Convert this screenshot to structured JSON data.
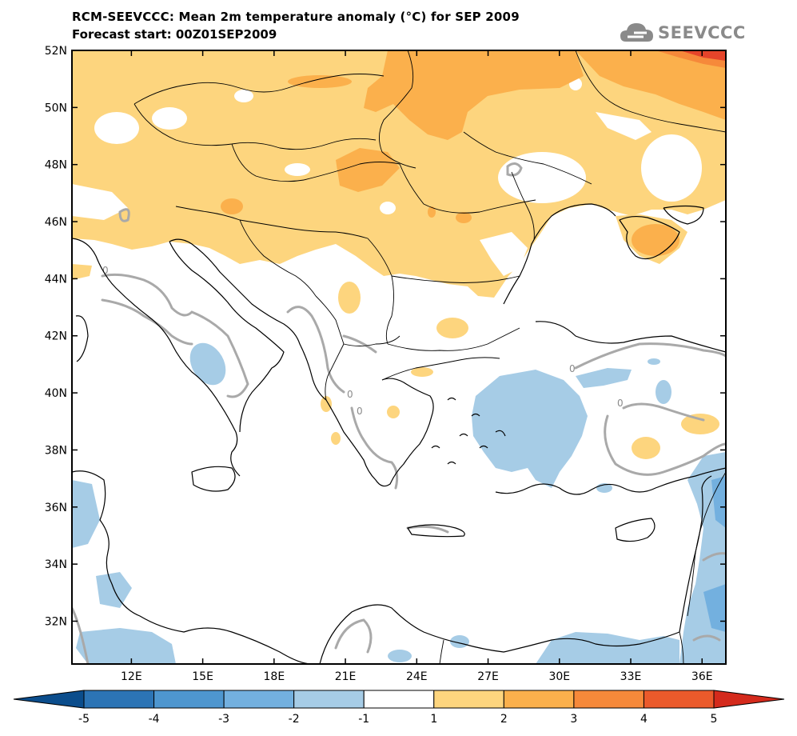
{
  "title": "RCM-SEEVCCC: Mean 2m temperature anomaly (°C) for SEP 2009",
  "subtitle": "Forecast start: 00Z01SEP2009",
  "logo": {
    "text": "SEEVCCC",
    "icon": "cloud-icon"
  },
  "map": {
    "latitude_labels": [
      "52N",
      "50N",
      "48N",
      "46N",
      "44N",
      "42N",
      "40N",
      "38N",
      "36N",
      "34N",
      "32N"
    ],
    "longitude_labels": [
      "12E",
      "15E",
      "18E",
      "21E",
      "24E",
      "27E",
      "30E",
      "33E",
      "36E"
    ],
    "lat_range": [
      30.5,
      52
    ],
    "lon_range": [
      9.5,
      37
    ],
    "contour_label": "0"
  },
  "colorbar": {
    "ticks": [
      "-5",
      "-4",
      "-3",
      "-2",
      "-1",
      "1",
      "2",
      "3",
      "4",
      "5"
    ],
    "colors": [
      "#0b4d8c",
      "#2c74b5",
      "#4e96cf",
      "#73b0df",
      "#a6cce6",
      "#ffffff",
      "#fdd57e",
      "#fbb04c",
      "#f6893a",
      "#eb5a2b",
      "#d42a1c"
    ]
  },
  "colors": {
    "warm1": "#fdd57e",
    "warm2": "#fbb04c",
    "warm3": "#f6893a",
    "warm4": "#e5442a",
    "cool1": "#a6cce6",
    "cool2": "#73b0df",
    "cool3": "#4e96cf",
    "zero_contour": "#a9a9a9",
    "coast": "#000000"
  }
}
